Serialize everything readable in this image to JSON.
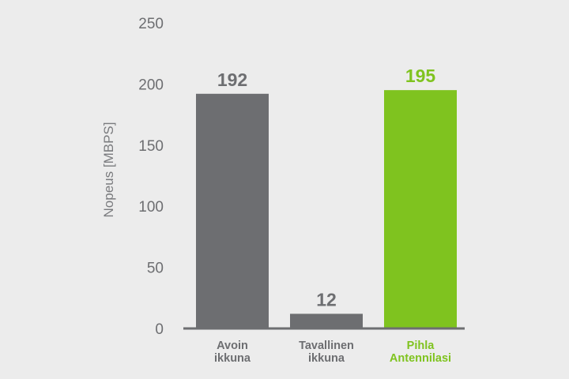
{
  "chart_data": {
    "type": "bar",
    "title": "",
    "xlabel": "",
    "ylabel": "Nopeus [MBPS]",
    "ylim": [
      0,
      250
    ],
    "yticks": [
      0,
      50,
      100,
      150,
      200,
      250
    ],
    "grid": false,
    "legend": "none",
    "categories": [
      [
        "Avoin",
        "ikkuna"
      ],
      [
        "Tavallinen",
        "ikkuna"
      ],
      [
        "Pihla",
        "Antennilasi"
      ]
    ],
    "values": [
      192,
      12,
      195
    ],
    "data_labels": [
      "192",
      "12",
      "195"
    ],
    "colors": [
      "#6d6e71",
      "#6d6e71",
      "#7fc31f"
    ],
    "label_colors": [
      "#6d6e71",
      "#6d6e71",
      "#7fc31f"
    ],
    "axis_color": "#6d6e71"
  }
}
